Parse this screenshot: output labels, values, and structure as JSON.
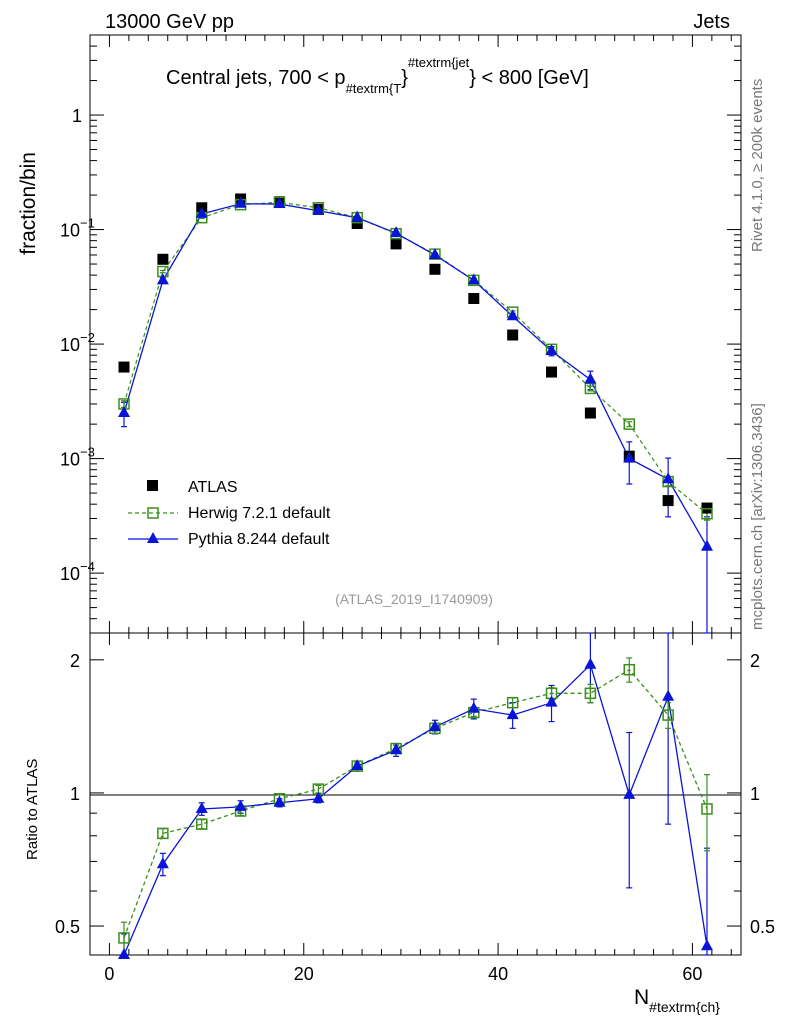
{
  "header": {
    "left": "13000 GeV pp",
    "right": "Jets"
  },
  "side_labels": {
    "top": "Rivet 4.1.0, ≥ 200k events",
    "bottom": "mcplots.cern.ch [arXiv:1306.3436]"
  },
  "plot_title": {
    "prefix": "Central jets, 700 < p",
    "sub": "#textrm{T",
    "mid": "}",
    "sup": "#textrm{jet",
    "suffix": "} < 800 [GeV]"
  },
  "analysis_tag": "(ATLAS_2019_I1740909)",
  "axes": {
    "ylabel_main": "fraction/bin",
    "ylabel_ratio": "Ratio to ATLAS",
    "xlabel_base": "N",
    "xlabel_sub": "#textrm{ch}",
    "x_ticks": [
      "0",
      "20",
      "40",
      "60"
    ],
    "y_main_ticks": [
      {
        "base": "10",
        "exp": "−4"
      },
      {
        "base": "10",
        "exp": "−3"
      },
      {
        "base": "10",
        "exp": "−2"
      },
      {
        "base": "10",
        "exp": "−1"
      },
      {
        "base": "1",
        "exp": ""
      }
    ],
    "y_ratio_ticks": [
      "0.5",
      "1",
      "2"
    ]
  },
  "legend": {
    "atlas": "ATLAS",
    "herwig": "Herwig 7.2.1 default",
    "pythia": "Pythia 8.244 default"
  },
  "colors": {
    "atlas": "#000000",
    "herwig": "#3a8f1a",
    "pythia": "#0a14d8"
  },
  "chart_data": {
    "type": "scatter",
    "xlim": [
      -2,
      65
    ],
    "main_ylim": [
      3e-05,
      5
    ],
    "main_yscale": "log",
    "ratio_ylim": [
      0.43,
      2.3
    ],
    "ratio_yscale": "log",
    "x": [
      1.5,
      5.5,
      9.5,
      13.5,
      17.5,
      21.5,
      25.5,
      29.5,
      33.5,
      37.5,
      41.5,
      45.5,
      49.5,
      53.5,
      57.5,
      61.5
    ],
    "series": [
      {
        "name": "ATLAS",
        "values": [
          0.0063,
          0.055,
          0.155,
          0.185,
          0.175,
          0.15,
          0.113,
          0.075,
          0.045,
          0.025,
          0.012,
          0.0057,
          0.0025,
          0.00105,
          0.00043,
          0.00037
        ]
      },
      {
        "name": "Herwig 7.2.1 default",
        "values": [
          0.003,
          0.043,
          0.127,
          0.165,
          0.173,
          0.155,
          0.127,
          0.092,
          0.061,
          0.036,
          0.019,
          0.009,
          0.0041,
          0.002,
          0.00063,
          0.00033
        ],
        "errors": [
          0.0002,
          0.001,
          0.002,
          0.002,
          0.002,
          0.002,
          0.002,
          0.002,
          0.001,
          0.001,
          0.0005,
          0.0003,
          0.0002,
          0.0001,
          5e-05,
          4e-05
        ]
      },
      {
        "name": "Pythia 8.244 default",
        "values": [
          0.0025,
          0.036,
          0.137,
          0.168,
          0.167,
          0.146,
          0.127,
          0.093,
          0.06,
          0.036,
          0.0175,
          0.0087,
          0.0049,
          0.001,
          0.00066,
          0.00017
        ],
        "errors": [
          0.0006,
          0.002,
          0.003,
          0.003,
          0.003,
          0.003,
          0.003,
          0.003,
          0.002,
          0.0015,
          0.001,
          0.0008,
          0.0009,
          0.0004,
          0.00035,
          0.00014
        ]
      }
    ],
    "ratio": [
      {
        "name": "Herwig 7.2.1 default",
        "values": [
          0.47,
          0.81,
          0.85,
          0.91,
          0.97,
          1.02,
          1.15,
          1.26,
          1.4,
          1.52,
          1.6,
          1.68,
          1.68,
          1.9,
          1.5,
          0.92
        ],
        "errors": [
          0.04,
          0.02,
          0.02,
          0.02,
          0.02,
          0.02,
          0.02,
          0.02,
          0.02,
          0.03,
          0.04,
          0.05,
          0.08,
          0.12,
          0.1,
          0.18
        ]
      },
      {
        "name": "Pythia 8.244 default",
        "values": [
          0.4,
          0.69,
          0.92,
          0.93,
          0.95,
          0.97,
          1.15,
          1.25,
          1.41,
          1.55,
          1.5,
          1.6,
          1.95,
          0.99,
          1.65,
          0.45
        ],
        "errors": [
          0.08,
          0.04,
          0.03,
          0.03,
          0.02,
          0.02,
          0.03,
          0.04,
          0.05,
          0.08,
          0.1,
          0.15,
          0.35,
          0.38,
          0.8,
          0.3
        ]
      }
    ]
  }
}
